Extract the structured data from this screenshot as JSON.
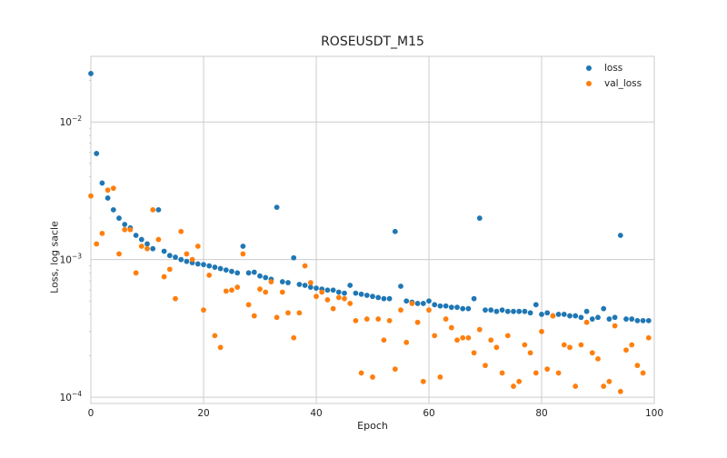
{
  "chart_data": {
    "type": "scatter",
    "title": "ROSEUSDT_M15",
    "xlabel": "Epoch",
    "ylabel": "Loss, log sacle",
    "xlim": [
      0,
      100
    ],
    "ylim": [
      9e-05,
      0.03
    ],
    "yscale": "log",
    "grid": true,
    "legend_position": "top-right",
    "x_ticks": [
      0,
      20,
      40,
      60,
      80,
      100
    ],
    "x_tick_labels": [
      "0",
      "20",
      "40",
      "60",
      "80",
      "100"
    ],
    "y_ticks": [
      0.0001,
      0.001,
      0.01
    ],
    "y_tick_labels": [
      {
        "base": "10",
        "exp": "−4"
      },
      {
        "base": "10",
        "exp": "−3"
      },
      {
        "base": "10",
        "exp": "−2"
      }
    ],
    "series": [
      {
        "name": "loss",
        "color": "#1f77b4",
        "x": [
          0,
          1,
          2,
          3,
          4,
          5,
          6,
          7,
          8,
          9,
          10,
          11,
          12,
          13,
          14,
          15,
          16,
          17,
          18,
          19,
          20,
          21,
          22,
          23,
          24,
          25,
          26,
          27,
          28,
          29,
          30,
          31,
          32,
          33,
          34,
          35,
          36,
          37,
          38,
          39,
          40,
          41,
          42,
          43,
          44,
          45,
          46,
          47,
          48,
          49,
          50,
          51,
          52,
          53,
          54,
          55,
          56,
          57,
          58,
          59,
          60,
          61,
          62,
          63,
          64,
          65,
          66,
          67,
          68,
          69,
          70,
          71,
          72,
          73,
          74,
          75,
          76,
          77,
          78,
          79,
          80,
          81,
          82,
          83,
          84,
          85,
          86,
          87,
          88,
          89,
          90,
          91,
          92,
          93,
          94,
          95,
          96,
          97,
          98,
          99
        ],
        "values": [
          0.0225,
          0.0059,
          0.0036,
          0.0028,
          0.0023,
          0.002,
          0.0018,
          0.0017,
          0.0015,
          0.0014,
          0.0013,
          0.0012,
          0.0023,
          0.00115,
          0.00107,
          0.00104,
          0.001,
          0.00097,
          0.00095,
          0.00093,
          0.00092,
          0.0009,
          0.00088,
          0.00086,
          0.00084,
          0.00082,
          0.0008,
          0.00125,
          0.0008,
          0.00081,
          0.00076,
          0.00074,
          0.00072,
          0.0024,
          0.00069,
          0.00068,
          0.00103,
          0.00066,
          0.00065,
          0.00063,
          0.00062,
          0.00061,
          0.0006,
          0.0006,
          0.00058,
          0.00057,
          0.00065,
          0.00057,
          0.00056,
          0.00055,
          0.00054,
          0.00053,
          0.00052,
          0.00052,
          0.0016,
          0.00064,
          0.0005,
          0.00049,
          0.00048,
          0.00048,
          0.0005,
          0.00047,
          0.00046,
          0.00046,
          0.00045,
          0.00045,
          0.00044,
          0.00044,
          0.00052,
          0.002,
          0.00043,
          0.00043,
          0.00042,
          0.00043,
          0.00042,
          0.00042,
          0.00042,
          0.00042,
          0.00041,
          0.00047,
          0.0004,
          0.00041,
          0.00039,
          0.0004,
          0.0004,
          0.00039,
          0.00039,
          0.00038,
          0.00042,
          0.00037,
          0.00038,
          0.00044,
          0.00037,
          0.00038,
          0.0015,
          0.00037,
          0.00037,
          0.00036,
          0.00036,
          0.00036
        ]
      },
      {
        "name": "val_loss",
        "color": "#ff7f0e",
        "x": [
          0,
          1,
          2,
          3,
          4,
          5,
          6,
          7,
          8,
          9,
          10,
          11,
          12,
          13,
          14,
          15,
          16,
          17,
          18,
          19,
          20,
          21,
          22,
          23,
          24,
          25,
          26,
          27,
          28,
          29,
          30,
          31,
          32,
          33,
          34,
          35,
          36,
          37,
          38,
          39,
          40,
          41,
          42,
          43,
          44,
          45,
          46,
          47,
          48,
          49,
          50,
          51,
          52,
          53,
          54,
          55,
          56,
          57,
          58,
          59,
          60,
          61,
          62,
          63,
          64,
          65,
          66,
          67,
          68,
          69,
          70,
          71,
          72,
          73,
          74,
          75,
          76,
          77,
          78,
          79,
          80,
          81,
          82,
          83,
          84,
          85,
          86,
          87,
          88,
          89,
          90,
          91,
          92,
          93,
          94,
          95,
          96,
          97,
          98,
          99
        ],
        "values": [
          0.0029,
          0.0013,
          0.00155,
          0.0032,
          0.0033,
          0.0011,
          0.00165,
          0.00165,
          0.0008,
          0.00125,
          0.0012,
          0.0023,
          0.0014,
          0.00075,
          0.00085,
          0.00052,
          0.0016,
          0.0011,
          0.001,
          0.00125,
          0.00043,
          0.00077,
          0.00028,
          0.00023,
          0.00059,
          0.0006,
          0.00063,
          0.0011,
          0.00047,
          0.00039,
          0.00061,
          0.00058,
          0.00069,
          0.00038,
          0.00058,
          0.00041,
          0.00027,
          0.00041,
          0.0009,
          0.00068,
          0.00054,
          0.00058,
          0.00051,
          0.00044,
          0.00053,
          0.00052,
          0.00048,
          0.00036,
          0.00015,
          0.00037,
          0.00014,
          0.00037,
          0.00026,
          0.00036,
          0.00016,
          0.00043,
          0.00025,
          0.00048,
          0.00035,
          0.00013,
          0.00043,
          0.00028,
          0.00014,
          0.00037,
          0.00032,
          0.00026,
          0.00027,
          0.00027,
          0.00021,
          0.00031,
          0.00017,
          0.00026,
          0.00023,
          0.00015,
          0.00028,
          0.00012,
          0.00013,
          0.00024,
          0.00021,
          0.00015,
          0.0003,
          0.00016,
          0.00039,
          0.00015,
          0.00024,
          0.00023,
          0.00012,
          0.00024,
          0.00035,
          0.00021,
          0.00019,
          0.00012,
          0.00013,
          0.00033,
          0.00011,
          0.00022,
          0.00024,
          0.00017,
          0.00015,
          0.00027
        ]
      }
    ]
  }
}
